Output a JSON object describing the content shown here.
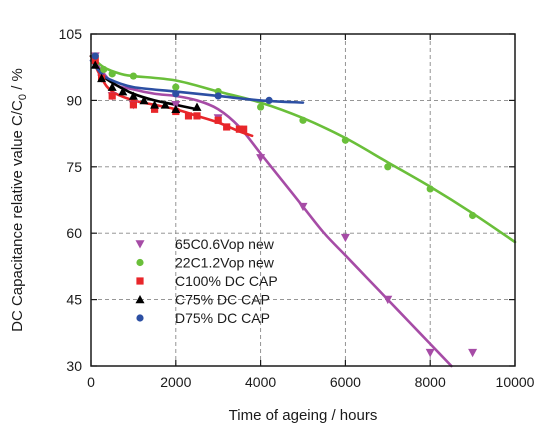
{
  "chart_data": {
    "type": "scatter",
    "xlabel": "Time of ageing / hours",
    "ylabel_parts": [
      "DC Capacitance relative value C/C",
      "0",
      " / %"
    ],
    "xlim": [
      0,
      10000
    ],
    "ylim": [
      30,
      105
    ],
    "xticks": [
      0,
      2000,
      4000,
      6000,
      8000,
      10000
    ],
    "yticks": [
      30,
      45,
      60,
      75,
      90,
      105
    ],
    "grid": true,
    "legend_position": "lower-left",
    "series": [
      {
        "name": "65C0.6Vop new",
        "marker": "triangle-down",
        "color": "#a64ca6",
        "points": [
          [
            100,
            100
          ],
          [
            250,
            95
          ],
          [
            500,
            91
          ],
          [
            1000,
            89
          ],
          [
            2000,
            89
          ],
          [
            3000,
            86
          ],
          [
            4000,
            77
          ],
          [
            5000,
            66
          ],
          [
            6000,
            59
          ],
          [
            7000,
            45
          ],
          [
            8000,
            33
          ],
          [
            9000,
            33
          ]
        ],
        "fit": [
          [
            0,
            100
          ],
          [
            500,
            94
          ],
          [
            1000,
            92.5
          ],
          [
            1500,
            91.5
          ],
          [
            2000,
            91
          ],
          [
            2500,
            90
          ],
          [
            3000,
            88
          ],
          [
            3500,
            84
          ],
          [
            4000,
            78
          ],
          [
            4500,
            72
          ],
          [
            5000,
            66
          ],
          [
            5500,
            60
          ],
          [
            6000,
            55
          ],
          [
            6500,
            50
          ],
          [
            7000,
            45
          ],
          [
            7500,
            40
          ],
          [
            8000,
            35
          ],
          [
            8500,
            30
          ]
        ]
      },
      {
        "name": "22C1.2Vop new",
        "marker": "circle",
        "color": "#6abf3a",
        "points": [
          [
            100,
            100
          ],
          [
            300,
            97
          ],
          [
            500,
            96
          ],
          [
            1000,
            95.5
          ],
          [
            2000,
            93
          ],
          [
            3000,
            92
          ],
          [
            4000,
            88.5
          ],
          [
            5000,
            85.5
          ],
          [
            6000,
            81
          ],
          [
            7000,
            75
          ],
          [
            8000,
            70
          ],
          [
            9000,
            64
          ]
        ],
        "fit": [
          [
            0,
            100
          ],
          [
            300,
            97.5
          ],
          [
            700,
            96
          ],
          [
            1000,
            95.5
          ],
          [
            2000,
            94.5
          ],
          [
            3000,
            92
          ],
          [
            4000,
            89.5
          ],
          [
            5000,
            86
          ],
          [
            6000,
            81.5
          ],
          [
            7000,
            76
          ],
          [
            8000,
            70.5
          ],
          [
            9000,
            64.5
          ],
          [
            10000,
            58
          ]
        ]
      },
      {
        "name": "C100% DC CAP",
        "marker": "square",
        "color": "#e8262a",
        "points": [
          [
            100,
            99
          ],
          [
            250,
            95
          ],
          [
            500,
            91
          ],
          [
            1000,
            89
          ],
          [
            1500,
            88
          ],
          [
            2000,
            87.5
          ],
          [
            2300,
            86.5
          ],
          [
            2500,
            86.5
          ],
          [
            3000,
            85.5
          ],
          [
            3200,
            84
          ],
          [
            3500,
            83.5
          ],
          [
            3600,
            83.5
          ]
        ],
        "fit": [
          [
            0,
            100
          ],
          [
            250,
            95
          ],
          [
            500,
            92
          ],
          [
            1000,
            90
          ],
          [
            1500,
            89
          ],
          [
            2000,
            88
          ],
          [
            2500,
            86.5
          ],
          [
            3000,
            85
          ],
          [
            3500,
            83
          ],
          [
            3800,
            82
          ]
        ]
      },
      {
        "name": "C75% DC CAP",
        "marker": "triangle-up",
        "color": "#000000",
        "points": [
          [
            100,
            98
          ],
          [
            250,
            95
          ],
          [
            500,
            93
          ],
          [
            750,
            92
          ],
          [
            1000,
            91
          ],
          [
            1250,
            90
          ],
          [
            1500,
            89
          ],
          [
            1750,
            89
          ],
          [
            2000,
            88
          ],
          [
            2500,
            88.5
          ]
        ],
        "fit": [
          [
            0,
            100
          ],
          [
            250,
            96
          ],
          [
            500,
            94
          ],
          [
            1000,
            91.5
          ],
          [
            1500,
            90
          ],
          [
            2000,
            89
          ],
          [
            2500,
            88
          ]
        ]
      },
      {
        "name": "D75% DC CAP",
        "marker": "circle",
        "color": "#2c4fa3",
        "points": [
          [
            100,
            100
          ],
          [
            2000,
            91.5
          ],
          [
            3000,
            91
          ],
          [
            4200,
            90
          ]
        ],
        "fit": [
          [
            0,
            99
          ],
          [
            250,
            96
          ],
          [
            500,
            94.5
          ],
          [
            1000,
            93
          ],
          [
            2000,
            92
          ],
          [
            3000,
            91
          ],
          [
            4000,
            90
          ],
          [
            5000,
            89.5
          ]
        ]
      }
    ]
  }
}
